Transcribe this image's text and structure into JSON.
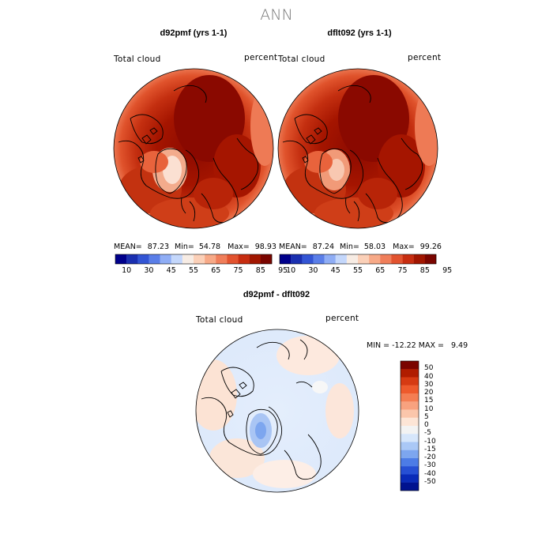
{
  "page": {
    "title": "ANN"
  },
  "panels": [
    {
      "title": "d92pmf (yrs 1-1)",
      "variable": "Total cloud",
      "units": "percent",
      "stats": {
        "mean_label": "MEAN=",
        "mean": "87.23",
        "min_label": "Min=",
        "min": "54.78",
        "max_label": "Max=",
        "max": "98.93"
      }
    },
    {
      "title": "dflt092 (yrs 1-1)",
      "variable": "Total cloud",
      "units": "percent",
      "stats": {
        "mean_label": "MEAN=",
        "mean": "87.24",
        "min_label": "Min=",
        "min": "58.03",
        "max_label": "Max=",
        "max": "99.26"
      }
    }
  ],
  "colorbar_top": {
    "ticks": [
      "10",
      "30",
      "45",
      "55",
      "65",
      "75",
      "85",
      "95"
    ],
    "colors": [
      "#00008b",
      "#1a2fb0",
      "#3355d4",
      "#5a7ee8",
      "#8fadf5",
      "#c4d7fb",
      "#f7ece4",
      "#fbd0b8",
      "#f7a987",
      "#f07e5a",
      "#e2532f",
      "#c72d10",
      "#a11600",
      "#7a0500"
    ]
  },
  "diff_panel": {
    "title": "d92pmf - dflt092",
    "variable": "Total cloud",
    "units": "percent",
    "minmax": "MIN = -12.22 MAX =   9.49",
    "legend_labels": [
      "50",
      "40",
      "30",
      "20",
      "15",
      "10",
      "5",
      "0",
      "-5",
      "-10",
      "-15",
      "-20",
      "-30",
      "-40",
      "-50"
    ],
    "legend_colors": [
      "#7a0500",
      "#b01c00",
      "#d63a12",
      "#ee5a2c",
      "#f47e53",
      "#f8a27f",
      "#fbc6ab",
      "#fde5d6",
      "#f3f3f3",
      "#d6e6fb",
      "#aac8f6",
      "#7da6ef",
      "#4d7ce6",
      "#2750d4",
      "#0a2bb8",
      "#00128f"
    ]
  }
}
